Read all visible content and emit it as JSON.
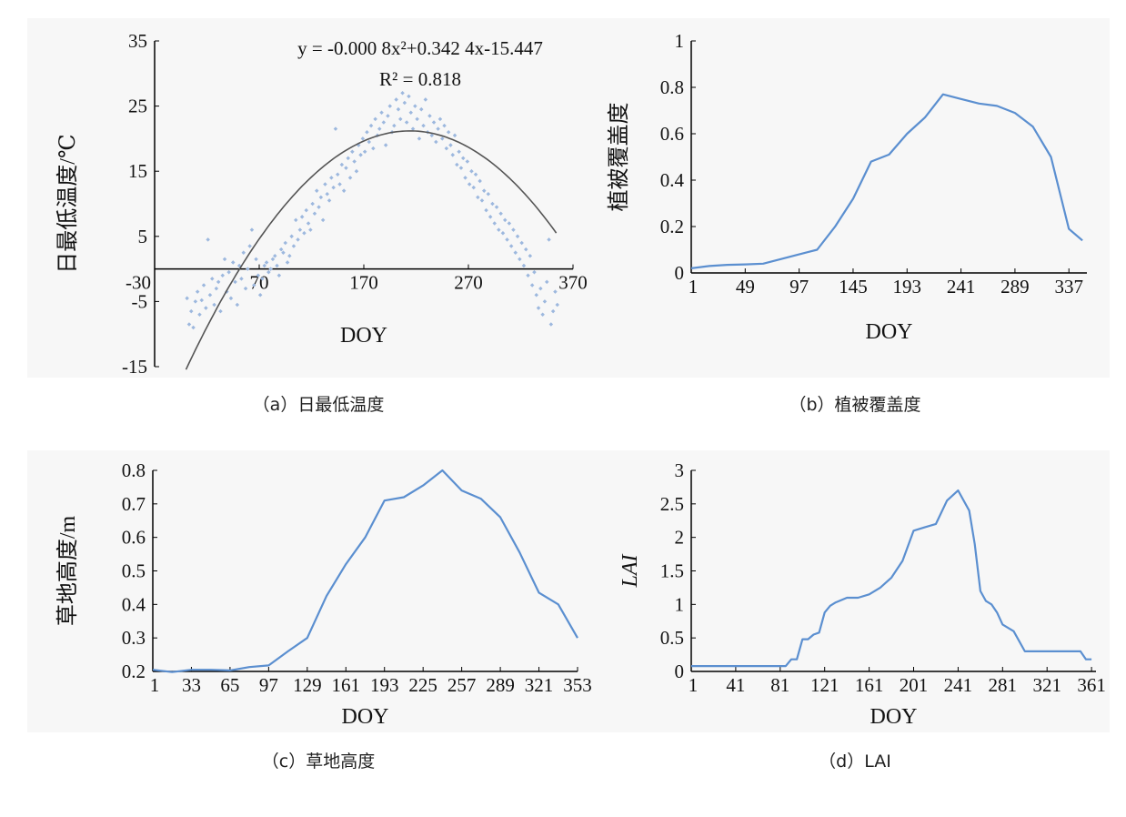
{
  "chart_data": [
    {
      "id": "a",
      "type": "scatter",
      "caption": "（a）日最低温度",
      "xlabel": "DOY",
      "ylabel": "日最低温度/℃",
      "xlim": [
        -30,
        370
      ],
      "ylim": [
        -15,
        35
      ],
      "xticks": [
        -30,
        70,
        170,
        270,
        370
      ],
      "yticks": [
        -15,
        -5,
        5,
        15,
        25,
        35
      ],
      "equation": "y = -0.000 8x²+0.342 4x-15.447",
      "r2": "R² = 0.818",
      "fit": {
        "a": -0.0008,
        "b": 0.3424,
        "c": -15.447,
        "x_range": [
          0,
          355
        ]
      },
      "point_color": "#9db8de",
      "line_color": "#555555",
      "points": [
        [
          1,
          -4.5
        ],
        [
          3,
          -8.5
        ],
        [
          5,
          -6.5
        ],
        [
          7,
          -9
        ],
        [
          9,
          -5
        ],
        [
          11,
          -3.5
        ],
        [
          13,
          -7
        ],
        [
          15,
          -4.8
        ],
        [
          17,
          -2.5
        ],
        [
          19,
          -6
        ],
        [
          21,
          4.5
        ],
        [
          23,
          -4
        ],
        [
          25,
          -1.5
        ],
        [
          27,
          -5.5
        ],
        [
          29,
          -3
        ],
        [
          31,
          -2
        ],
        [
          33,
          -6.5
        ],
        [
          35,
          -1
        ],
        [
          37,
          1.5
        ],
        [
          39,
          -3.5
        ],
        [
          41,
          -0.5
        ],
        [
          43,
          -4.5
        ],
        [
          45,
          1
        ],
        [
          47,
          -2
        ],
        [
          49,
          -5.5
        ],
        [
          51,
          0.5
        ],
        [
          53,
          -1.5
        ],
        [
          55,
          2.5
        ],
        [
          57,
          -3
        ],
        [
          59,
          0
        ],
        [
          61,
          3.5
        ],
        [
          63,
          6
        ],
        [
          65,
          -2.5
        ],
        [
          67,
          1.5
        ],
        [
          69,
          -1
        ],
        [
          71,
          -4
        ],
        [
          73,
          -1.5
        ],
        [
          75,
          0.5
        ],
        [
          77,
          1
        ],
        [
          79,
          -0.5
        ],
        [
          81,
          0
        ],
        [
          83,
          1.5
        ],
        [
          85,
          2
        ],
        [
          87,
          0.5
        ],
        [
          89,
          -1
        ],
        [
          91,
          3
        ],
        [
          93,
          2.5
        ],
        [
          95,
          4
        ],
        [
          97,
          1
        ],
        [
          99,
          2
        ],
        [
          101,
          5
        ],
        [
          103,
          3.5
        ],
        [
          105,
          7.5
        ],
        [
          107,
          4.5
        ],
        [
          109,
          6
        ],
        [
          111,
          8
        ],
        [
          113,
          5.5
        ],
        [
          115,
          9
        ],
        [
          117,
          7
        ],
        [
          119,
          6
        ],
        [
          121,
          10
        ],
        [
          123,
          8.5
        ],
        [
          125,
          12
        ],
        [
          127,
          9.5
        ],
        [
          129,
          11
        ],
        [
          131,
          7.5
        ],
        [
          133,
          13
        ],
        [
          135,
          11.5
        ],
        [
          137,
          10.5
        ],
        [
          139,
          14
        ],
        [
          141,
          12.5
        ],
        [
          143,
          21.5
        ],
        [
          145,
          14.5
        ],
        [
          147,
          13
        ],
        [
          149,
          16
        ],
        [
          151,
          12
        ],
        [
          153,
          15.5
        ],
        [
          155,
          17
        ],
        [
          157,
          14
        ],
        [
          159,
          18
        ],
        [
          161,
          16.5
        ],
        [
          163,
          15
        ],
        [
          165,
          19
        ],
        [
          167,
          17.5
        ],
        [
          169,
          20
        ],
        [
          171,
          18
        ],
        [
          173,
          21
        ],
        [
          175,
          19.5
        ],
        [
          177,
          22
        ],
        [
          179,
          18.5
        ],
        [
          181,
          23
        ],
        [
          183,
          20.5
        ],
        [
          185,
          21.5
        ],
        [
          187,
          24
        ],
        [
          189,
          22.5
        ],
        [
          191,
          19
        ],
        [
          193,
          23.5
        ],
        [
          195,
          25
        ],
        [
          197,
          21
        ],
        [
          199,
          22
        ],
        [
          201,
          26
        ],
        [
          203,
          24.5
        ],
        [
          205,
          23
        ],
        [
          207,
          27
        ],
        [
          209,
          25.5
        ],
        [
          211,
          22.5
        ],
        [
          213,
          26.5
        ],
        [
          215,
          24
        ],
        [
          217,
          21.5
        ],
        [
          219,
          25
        ],
        [
          221,
          23
        ],
        [
          223,
          20
        ],
        [
          225,
          24.5
        ],
        [
          227,
          22
        ],
        [
          229,
          26
        ],
        [
          231,
          21
        ],
        [
          233,
          23.5
        ],
        [
          235,
          20.5
        ],
        [
          237,
          22.5
        ],
        [
          239,
          19.5
        ],
        [
          241,
          21.5
        ],
        [
          243,
          23
        ],
        [
          245,
          20
        ],
        [
          247,
          22
        ],
        [
          249,
          18.5
        ],
        [
          251,
          21
        ],
        [
          253,
          19
        ],
        [
          255,
          17.5
        ],
        [
          257,
          20.5
        ],
        [
          259,
          16
        ],
        [
          261,
          18
        ],
        [
          263,
          15.5
        ],
        [
          265,
          17
        ],
        [
          267,
          14
        ],
        [
          269,
          16.5
        ],
        [
          271,
          13
        ],
        [
          273,
          15
        ],
        [
          275,
          12.5
        ],
        [
          277,
          14.5
        ],
        [
          279,
          11
        ],
        [
          281,
          13.5
        ],
        [
          283,
          10.5
        ],
        [
          285,
          12
        ],
        [
          287,
          9
        ],
        [
          289,
          11.5
        ],
        [
          291,
          8
        ],
        [
          293,
          10
        ],
        [
          295,
          7
        ],
        [
          297,
          9.5
        ],
        [
          299,
          6
        ],
        [
          301,
          8.5
        ],
        [
          303,
          5.5
        ],
        [
          305,
          7.5
        ],
        [
          307,
          4.5
        ],
        [
          309,
          7
        ],
        [
          311,
          3.5
        ],
        [
          313,
          6
        ],
        [
          315,
          2.5
        ],
        [
          317,
          5
        ],
        [
          319,
          1.5
        ],
        [
          321,
          4
        ],
        [
          323,
          0.5
        ],
        [
          325,
          3
        ],
        [
          327,
          -1
        ],
        [
          329,
          2
        ],
        [
          331,
          -2.5
        ],
        [
          333,
          -0.5
        ],
        [
          335,
          -4
        ],
        [
          337,
          -6
        ],
        [
          339,
          -3
        ],
        [
          341,
          -7
        ],
        [
          343,
          -5
        ],
        [
          345,
          -2
        ],
        [
          347,
          4.5
        ],
        [
          349,
          -8.5
        ],
        [
          351,
          -6.5
        ],
        [
          353,
          -3.5
        ],
        [
          355,
          -5.5
        ]
      ]
    },
    {
      "id": "b",
      "type": "line",
      "caption": "（b）植被覆盖度",
      "xlabel": "DOY",
      "ylabel": "植被覆盖度",
      "xlim": [
        1,
        353
      ],
      "ylim": [
        0,
        1
      ],
      "xticks": [
        1,
        49,
        97,
        145,
        193,
        241,
        289,
        337
      ],
      "yticks": [
        0,
        0.2,
        0.4,
        0.6,
        0.8,
        1
      ],
      "ytick_labels": [
        "0",
        "0.2",
        "0.4",
        "0.6",
        "0.8",
        "1"
      ],
      "line_color": "#5b8fd0",
      "x": [
        1,
        17,
        33,
        49,
        65,
        81,
        97,
        113,
        129,
        145,
        161,
        177,
        193,
        209,
        225,
        241,
        257,
        273,
        289,
        305,
        321,
        337,
        349
      ],
      "y": [
        0.02,
        0.03,
        0.035,
        0.037,
        0.04,
        0.06,
        0.08,
        0.1,
        0.2,
        0.32,
        0.48,
        0.51,
        0.6,
        0.67,
        0.77,
        0.75,
        0.73,
        0.72,
        0.69,
        0.63,
        0.5,
        0.19,
        0.14
      ]
    },
    {
      "id": "c",
      "type": "line",
      "caption": "（c）草地高度",
      "xlabel": "DOY",
      "ylabel": "草地高度/m",
      "xlim": [
        1,
        353
      ],
      "ylim": [
        0.2,
        0.8
      ],
      "xticks": [
        1,
        33,
        65,
        97,
        129,
        161,
        193,
        225,
        257,
        289,
        321,
        353
      ],
      "yticks": [
        0.2,
        0.3,
        0.4,
        0.5,
        0.6,
        0.7,
        0.8
      ],
      "line_color": "#5b8fd0",
      "x": [
        1,
        17,
        33,
        49,
        65,
        81,
        97,
        113,
        129,
        145,
        161,
        177,
        193,
        209,
        225,
        241,
        257,
        273,
        289,
        305,
        321,
        337,
        353
      ],
      "y": [
        0.205,
        0.198,
        0.205,
        0.205,
        0.203,
        0.213,
        0.218,
        0.26,
        0.3,
        0.425,
        0.52,
        0.6,
        0.71,
        0.72,
        0.755,
        0.8,
        0.74,
        0.715,
        0.66,
        0.555,
        0.435,
        0.4,
        0.3
      ]
    },
    {
      "id": "d",
      "type": "line",
      "caption": "（d）LAI",
      "xlabel": "DOY",
      "ylabel": "LAI",
      "xlim": [
        1,
        365
      ],
      "ylim": [
        0,
        3
      ],
      "xticks": [
        1,
        41,
        81,
        121,
        161,
        201,
        241,
        281,
        321,
        361
      ],
      "yticks": [
        0,
        0.5,
        1,
        1.5,
        2,
        2.5,
        3
      ],
      "line_color": "#5b8fd0",
      "x": [
        1,
        11,
        21,
        31,
        41,
        51,
        61,
        71,
        81,
        86,
        91,
        96,
        101,
        106,
        111,
        116,
        121,
        126,
        131,
        141,
        151,
        161,
        171,
        181,
        191,
        201,
        211,
        221,
        231,
        241,
        251,
        256,
        261,
        266,
        271,
        276,
        281,
        291,
        301,
        311,
        321,
        331,
        341,
        351,
        356,
        361
      ],
      "y": [
        0.08,
        0.08,
        0.08,
        0.08,
        0.08,
        0.08,
        0.08,
        0.08,
        0.08,
        0.08,
        0.18,
        0.18,
        0.48,
        0.48,
        0.55,
        0.58,
        0.88,
        0.98,
        1.03,
        1.1,
        1.1,
        1.15,
        1.25,
        1.4,
        1.65,
        2.1,
        2.15,
        2.2,
        2.55,
        2.7,
        2.4,
        1.9,
        1.2,
        1.05,
        1.0,
        0.88,
        0.7,
        0.6,
        0.3,
        0.3,
        0.3,
        0.3,
        0.3,
        0.3,
        0.18,
        0.18
      ]
    }
  ]
}
